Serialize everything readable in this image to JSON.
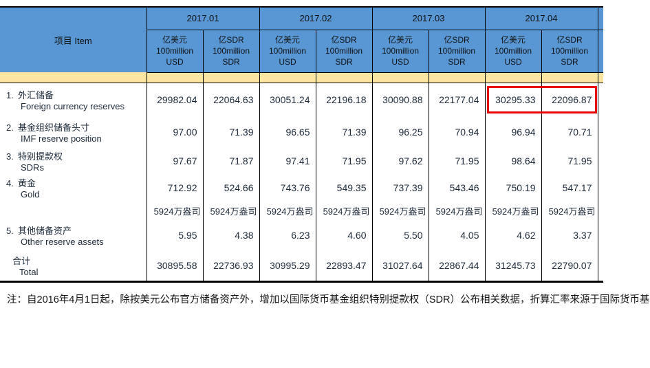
{
  "table": {
    "item_header": "项目  Item",
    "periods": [
      "2017.01",
      "2017.02",
      "2017.03",
      "2017.04"
    ],
    "unit_usd": {
      "cn": "亿美元",
      "l2": "100million",
      "l3": "USD"
    },
    "unit_sdr": {
      "cn": "亿SDR",
      "l2": "100million",
      "l3": "SDR"
    },
    "rows": [
      {
        "no": "1.",
        "cn": "外汇储备",
        "en": "Foreign currency reserves",
        "values": [
          "29982.04",
          "22064.63",
          "30051.24",
          "22196.18",
          "30090.88",
          "22177.04",
          "30295.33",
          "22096.87"
        ]
      },
      {
        "no": "2.",
        "cn": "基金组织储备头寸",
        "en": "IMF reserve position",
        "values": [
          "97.00",
          "71.39",
          "96.65",
          "71.39",
          "96.25",
          "70.94",
          "96.94",
          "70.71"
        ]
      },
      {
        "no": "3.",
        "cn": "特别提款权",
        "en": "SDRs",
        "values": [
          "97.67",
          "71.87",
          "97.41",
          "71.95",
          "97.62",
          "71.95",
          "98.64",
          "71.95"
        ]
      },
      {
        "no": "4.",
        "cn": "黄金",
        "en": "Gold",
        "values": [
          "712.92",
          "524.66",
          "743.76",
          "549.35",
          "737.39",
          "543.46",
          "750.19",
          "547.17"
        ]
      },
      {
        "no": "",
        "cn": "",
        "en": "",
        "values": [
          "5924万盎司",
          "5924万盎司",
          "5924万盎司",
          "5924万盎司",
          "5924万盎司",
          "5924万盎司",
          "5924万盎司",
          "5924万盎司"
        ]
      },
      {
        "no": "5.",
        "cn": "其他储备资产",
        "en": "Other reserve assets",
        "values": [
          "5.95",
          "4.38",
          "6.23",
          "4.60",
          "5.50",
          "4.05",
          "4.62",
          "3.37"
        ]
      },
      {
        "no": "",
        "cn": "合计",
        "en": "Total",
        "values": [
          "30895.58",
          "22736.93",
          "30995.29",
          "22893.47",
          "31027.64",
          "22867.44",
          "31245.73",
          "22790.07"
        ]
      }
    ],
    "highlight": {
      "row": 0,
      "columns": [
        6,
        7
      ],
      "meaning": "2017.04 foreign currency reserves values outlined in red"
    }
  },
  "note": {
    "text": "注：自2016年4月1日起，除按美元公布官方储备资产外，增加以国际货币基金组织特别提款权（SDR）公布相关数据，折算汇率来源于国际货币基"
  },
  "colors": {
    "header_blue": "#5897d3",
    "band_yellow": "#fbe5a0",
    "highlight_red": "#e60000",
    "border_black": "#000000"
  }
}
